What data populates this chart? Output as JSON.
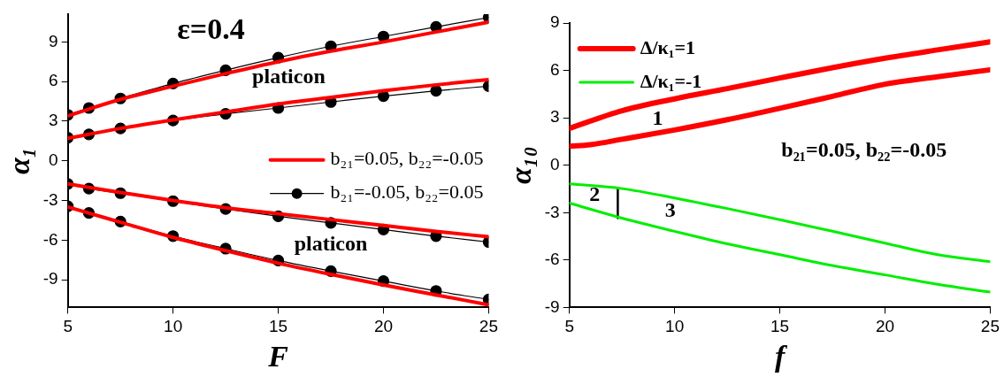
{
  "chart_data": [
    {
      "type": "line",
      "title": "ε=0.4",
      "xlabel": "F",
      "ylabel": "α₁",
      "xlim": [
        5,
        25
      ],
      "xticks": [
        5,
        10,
        15,
        20,
        25
      ],
      "ylim": [
        -11.1,
        11.1
      ],
      "yticks": [
        -9,
        -6,
        -3,
        0,
        3,
        6,
        9
      ],
      "grid": false,
      "legend": "right",
      "annotations": [
        "platicon",
        "platicon"
      ],
      "series": [
        {
          "name": "b₂₁=0.05, b₂₂=-0.05",
          "color": "#ff0000",
          "marker": "none",
          "x": [
            5,
            7.5,
            10,
            12.5,
            15,
            17.5,
            20,
            22.5,
            25
          ],
          "values": [
            3.4,
            4.65,
            5.65,
            6.6,
            7.5,
            8.3,
            9.0,
            9.75,
            10.5
          ]
        },
        {
          "color": "#ff0000",
          "marker": "none",
          "x": [
            5,
            7.5,
            10,
            12.5,
            15,
            17.5,
            20,
            22.5,
            25
          ],
          "values": [
            1.7,
            2.45,
            3.1,
            3.7,
            4.3,
            4.8,
            5.3,
            5.75,
            6.15
          ]
        },
        {
          "color": "#ff0000",
          "marker": "none",
          "x": [
            5,
            7.5,
            10,
            12.5,
            15,
            17.5,
            20,
            22.5,
            25
          ],
          "values": [
            -1.75,
            -2.4,
            -3.0,
            -3.55,
            -4.0,
            -4.45,
            -4.9,
            -5.35,
            -5.75
          ]
        },
        {
          "color": "#ff0000",
          "marker": "none",
          "x": [
            5,
            7.5,
            10,
            12.5,
            15,
            17.5,
            20,
            22.5,
            25
          ],
          "values": [
            -3.5,
            -4.65,
            -5.8,
            -6.8,
            -7.75,
            -8.6,
            -9.4,
            -10.15,
            -10.9
          ]
        },
        {
          "name": "b₂₁=-0.05, b₂₂=0.05",
          "color": "#000000",
          "marker": "circle",
          "x": [
            5,
            6,
            7.5,
            10,
            12.5,
            15,
            17.5,
            20,
            22.5,
            25
          ],
          "values": [
            3.48,
            4.0,
            4.72,
            5.85,
            6.86,
            7.81,
            8.67,
            9.41,
            10.14,
            10.85
          ]
        },
        {
          "color": "#000000",
          "marker": "circle",
          "x": [
            5,
            6,
            7.5,
            10,
            12.5,
            15,
            17.5,
            20,
            22.5,
            25
          ],
          "values": [
            1.75,
            2.0,
            2.45,
            3.05,
            3.55,
            4.0,
            4.45,
            4.9,
            5.3,
            5.65
          ]
        },
        {
          "color": "#000000",
          "marker": "circle",
          "x": [
            5,
            6,
            7.5,
            10,
            12.5,
            15,
            17.5,
            20,
            22.5,
            25
          ],
          "values": [
            -1.75,
            -2.1,
            -2.45,
            -3.05,
            -3.65,
            -4.2,
            -4.7,
            -5.2,
            -5.7,
            -6.15
          ]
        },
        {
          "color": "#000000",
          "marker": "circle",
          "x": [
            5,
            6,
            7.5,
            10,
            12.5,
            15,
            17.5,
            20,
            22.5,
            25
          ],
          "values": [
            -3.45,
            -3.95,
            -4.6,
            -5.7,
            -6.65,
            -7.55,
            -8.35,
            -9.1,
            -9.85,
            -10.5
          ]
        }
      ]
    },
    {
      "type": "line",
      "xlabel": "f",
      "ylabel": "α₁₀",
      "xlim": [
        5,
        25
      ],
      "xticks": [
        5,
        10,
        15,
        20,
        25
      ],
      "ylim": [
        -9,
        9
      ],
      "yticks": [
        -9,
        -6,
        -3,
        0,
        3,
        6,
        9
      ],
      "grid": false,
      "legend": "top left",
      "annotations": [
        "1",
        "2",
        "3",
        "b₂₁=0.05, b₂₂=-0.05"
      ],
      "series": [
        {
          "name": "Δ/κ₁=1",
          "color": "#ff0000",
          "x": [
            5,
            7.5,
            10,
            12.5,
            15,
            17.5,
            20,
            22.5,
            25
          ],
          "values": [
            2.33,
            3.45,
            4.2,
            4.85,
            5.52,
            6.17,
            6.77,
            7.3,
            7.81
          ]
        },
        {
          "color": "#ff0000",
          "x": [
            5,
            6,
            7.5,
            10,
            12.5,
            15,
            17.5,
            20,
            22.5,
            25
          ],
          "values": [
            1.2,
            1.3,
            1.64,
            2.23,
            2.88,
            3.6,
            4.36,
            5.13,
            5.6,
            6.04
          ]
        },
        {
          "name": "Δ/κ₁=-1",
          "color": "#00ee00",
          "x": [
            5,
            7.5,
            10,
            12.5,
            15,
            17.5,
            20,
            22.5,
            25
          ],
          "values": [
            -1.18,
            -1.48,
            -2.07,
            -2.74,
            -3.45,
            -4.18,
            -4.93,
            -5.66,
            -6.1
          ]
        },
        {
          "color": "#00ee00",
          "x": [
            5,
            7.5,
            10,
            12.5,
            15,
            17.5,
            20,
            22.5,
            25
          ],
          "values": [
            -2.4,
            -3.35,
            -4.18,
            -4.97,
            -5.66,
            -6.35,
            -6.94,
            -7.53,
            -8.03
          ]
        },
        {
          "color": "#000000",
          "x": [
            7.3,
            7.3
          ],
          "values": [
            -1.5,
            -3.35
          ]
        }
      ]
    }
  ]
}
